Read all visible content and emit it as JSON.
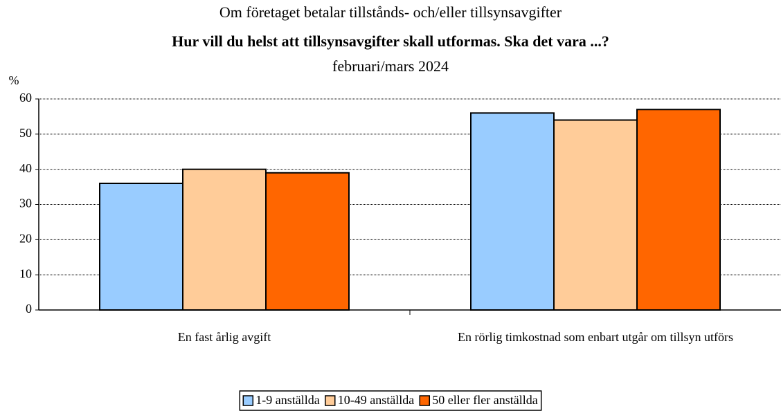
{
  "chart_data": {
    "type": "bar",
    "title": "Om företaget betalar tillstånds- och/eller tillsynsavgifter",
    "subtitle": "Hur vill du helst att tillsynsavgifter skall utformas. Ska det vara ...?",
    "date": "februari/mars 2024",
    "y_label": "%",
    "categories": [
      "En fast årlig avgift",
      "En rörlig timkostnad som enbart utgår om tillsyn utförs"
    ],
    "series": [
      {
        "name": "1-9 anställda",
        "color": "#99ccff",
        "values": [
          36,
          56
        ]
      },
      {
        "name": "10-49 anställda",
        "color": "#ffcc99",
        "values": [
          40,
          54
        ]
      },
      {
        "name": "50 eller fler anställda",
        "color": "#ff6600",
        "values": [
          39,
          57
        ]
      }
    ],
    "ylim": [
      0,
      60
    ],
    "yticks": [
      0,
      10,
      20,
      30,
      40,
      50,
      60
    ],
    "grid": true,
    "legend": "bottom"
  }
}
